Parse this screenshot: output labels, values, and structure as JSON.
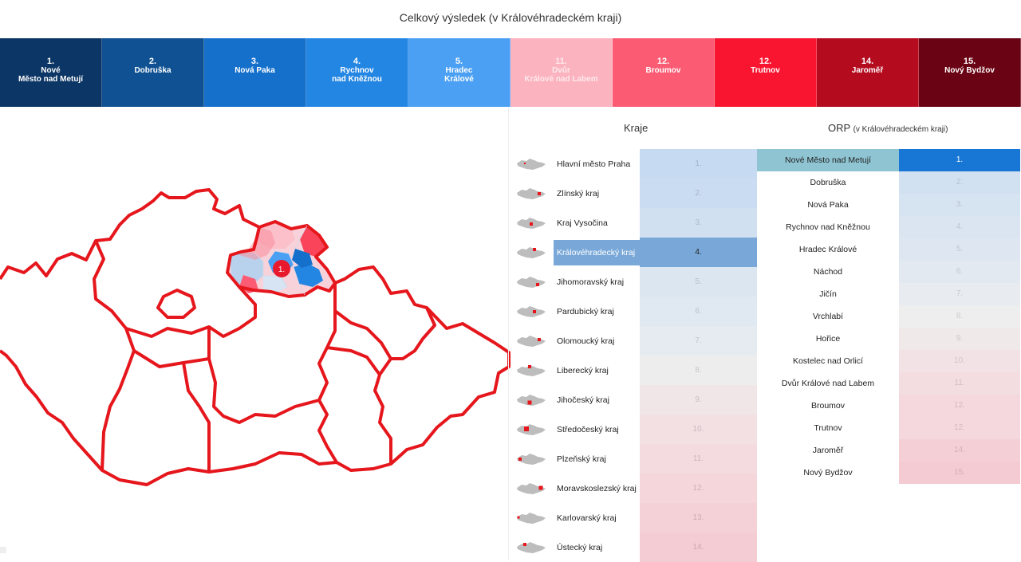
{
  "title": "Celkový výsledek (v Královéhradeckém kraji)",
  "strip": [
    {
      "rank": "1.",
      "name": "Nové\nMěsto nad Metují",
      "color": "#0c3665"
    },
    {
      "rank": "2.",
      "name": "Dobruška",
      "color": "#0f5192"
    },
    {
      "rank": "3.",
      "name": "Nová Paka",
      "color": "#1570cc"
    },
    {
      "rank": "4.",
      "name": "Rychnov\nnad Kněžnou",
      "color": "#2486e3"
    },
    {
      "rank": "5.",
      "name": "Hradec\nKrálové",
      "color": "#4ba0f4"
    },
    {
      "rank": "11.",
      "name": "Dvůr\nKrálové nad Labem",
      "color": "#fbb4bf"
    },
    {
      "rank": "12.",
      "name": "Broumov",
      "color": "#fc5c73"
    },
    {
      "rank": "12.",
      "name": "Trutnov",
      "color": "#f9142f"
    },
    {
      "rank": "14.",
      "name": "Jaroměř",
      "color": "#b40b1f"
    },
    {
      "rank": "15.",
      "name": "Nový Bydžov",
      "color": "#6a0313"
    }
  ],
  "map": {
    "marker": "1.",
    "outline_color": "#e5161c"
  },
  "kraje": {
    "title": "Kraje",
    "rows": [
      {
        "name": "Hlavní město Praha",
        "rank": "1.",
        "color": "#c6daf1"
      },
      {
        "name": "Zlínský kraj",
        "rank": "2.",
        "color": "#cadcf1"
      },
      {
        "name": "Kraj Vysočina",
        "rank": "3.",
        "color": "#d0e0f1"
      },
      {
        "name": "Královéhradecký kraj",
        "rank": "4.",
        "color": "#79a8d8",
        "selected": true
      },
      {
        "name": "Jihomoravský kraj",
        "rank": "5.",
        "color": "#dbe6f1"
      },
      {
        "name": "Pardubický kraj",
        "rank": "6.",
        "color": "#e0e8f1"
      },
      {
        "name": "Olomoucký kraj",
        "rank": "7.",
        "color": "#e6ebf1"
      },
      {
        "name": "Liberecký kraj",
        "rank": "8.",
        "color": "#eeeded"
      },
      {
        "name": "Jihočeský kraj",
        "rank": "9.",
        "color": "#f0e6e8"
      },
      {
        "name": "Středočeský kraj",
        "rank": "10.",
        "color": "#f2e0e3"
      },
      {
        "name": "Plzeňský kraj",
        "rank": "11.",
        "color": "#f3dbdf"
      },
      {
        "name": "Moravskoslezský kraj",
        "rank": "12.",
        "color": "#f4d6db"
      },
      {
        "name": "Karlovarský kraj",
        "rank": "13.",
        "color": "#f4d1d7"
      },
      {
        "name": "Ústecký kraj",
        "rank": "14.",
        "color": "#f4ccd3"
      }
    ]
  },
  "orp": {
    "title": "ORP",
    "subtitle": "(v Královéhradeckém kraji)",
    "rows": [
      {
        "name": "Nové Město nad Metují",
        "rank": "1.",
        "color": "#1877d4",
        "selected": true
      },
      {
        "name": "Dobruška",
        "rank": "2.",
        "color": "#d2e1f1"
      },
      {
        "name": "Nová Paka",
        "rank": "3.",
        "color": "#d6e3f1"
      },
      {
        "name": "Rychnov nad Kněžnou",
        "rank": "4.",
        "color": "#dae5f1"
      },
      {
        "name": "Hradec Králové",
        "rank": "5.",
        "color": "#dee7f1"
      },
      {
        "name": "Náchod",
        "rank": "6.",
        "color": "#e3e9f1"
      },
      {
        "name": "Jičín",
        "rank": "7.",
        "color": "#e8ecf1"
      },
      {
        "name": "Vrchlabí",
        "rank": "8.",
        "color": "#eeeeee"
      },
      {
        "name": "Hořice",
        "rank": "9.",
        "color": "#f0e9ea"
      },
      {
        "name": "Kostelec nad Orlicí",
        "rank": "10.",
        "color": "#f2e2e5"
      },
      {
        "name": "Dvůr Králové nad Labem",
        "rank": "11.",
        "color": "#f3dde1"
      },
      {
        "name": "Broumov",
        "rank": "12.",
        "color": "#f4d8dd"
      },
      {
        "name": "Trutnov",
        "rank": "12.",
        "color": "#f4d8dd"
      },
      {
        "name": "Jaroměř",
        "rank": "14.",
        "color": "#f4d0d6"
      },
      {
        "name": "Nový Bydžov",
        "rank": "15.",
        "color": "#f4cbd2"
      }
    ]
  }
}
